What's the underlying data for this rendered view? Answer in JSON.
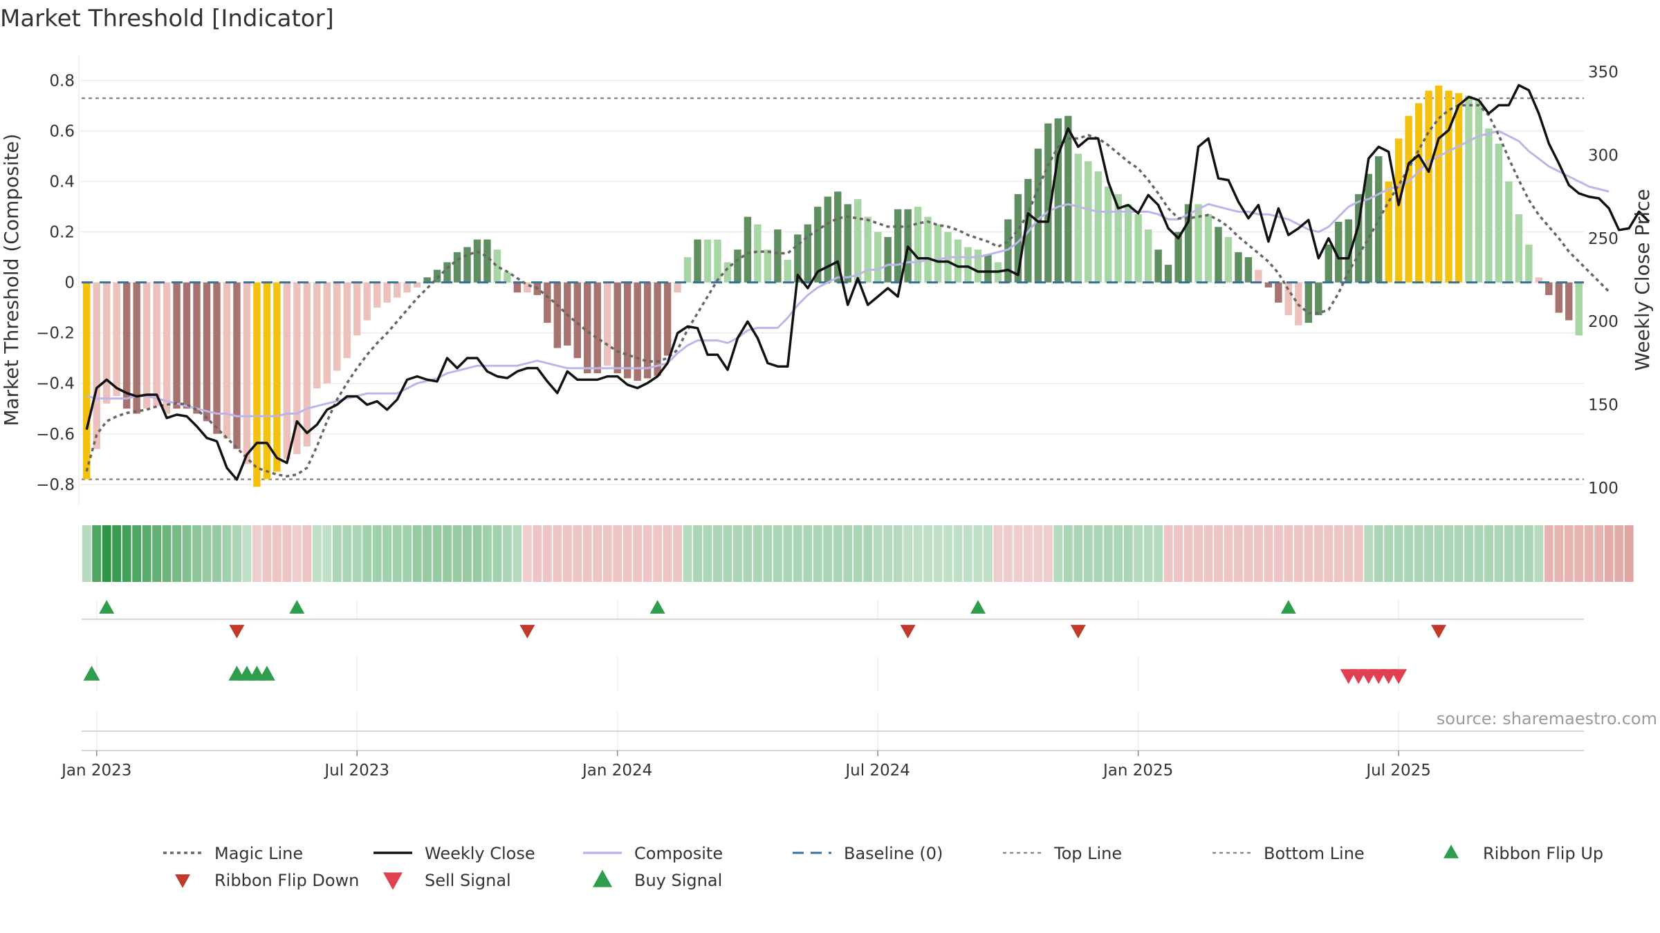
{
  "colors": {
    "bar_pos_strong": "#5f8f61",
    "bar_pos_weak": "#a8d5a4",
    "bar_neg_strong": "#a6736f",
    "bar_neg_weak": "#ecc0bb",
    "bar_extreme": "#f5c10f",
    "magic_line": "#666666",
    "weekly_close": "#111111",
    "composite": "#bdb5e8",
    "baseline": "#3a6f96",
    "threshold": "#888888",
    "buy": "#2e9e4d",
    "sell": "#d63b3b",
    "grid": "#ececec"
  },
  "chart_data": {
    "type": "bar",
    "title": "Market Threshold [Indicator]",
    "ylabel": "Market Threshold (Composite)",
    "y2label": "Weekly Close Price",
    "ylim": [
      -0.88,
      0.9
    ],
    "y2lim": [
      90,
      360
    ],
    "yticks": [
      -0.8,
      -0.6,
      -0.4,
      -0.2,
      0,
      0.2,
      0.4,
      0.6,
      0.8
    ],
    "ytick_labels": [
      "−0.8",
      "−0.6",
      "−0.4",
      "−0.2",
      "0",
      "0.2",
      "0.4",
      "0.6",
      "0.8"
    ],
    "y2ticks": [
      100,
      150,
      200,
      250,
      300,
      350
    ],
    "xticks": [
      {
        "week": 1,
        "label": "Jan 2023"
      },
      {
        "week": 27,
        "label": "Jul 2023"
      },
      {
        "week": 53,
        "label": "Jan 2024"
      },
      {
        "week": 79,
        "label": "Jul 2024"
      },
      {
        "week": 105,
        "label": "Jan 2025"
      },
      {
        "week": 131,
        "label": "Jul 2025"
      }
    ],
    "top_line": 0.73,
    "bottom_line": -0.78,
    "grid": true,
    "source": "source: sharemaestro.com",
    "bars": [
      -0.78,
      -0.66,
      -0.48,
      -0.45,
      -0.5,
      -0.52,
      -0.5,
      -0.49,
      -0.52,
      -0.5,
      -0.5,
      -0.52,
      -0.55,
      -0.6,
      -0.62,
      -0.66,
      -0.72,
      -0.81,
      -0.78,
      -0.75,
      -0.7,
      -0.68,
      -0.65,
      -0.42,
      -0.4,
      -0.35,
      -0.3,
      -0.21,
      -0.15,
      -0.1,
      -0.08,
      -0.06,
      -0.04,
      -0.02,
      0.02,
      0.05,
      0.08,
      0.12,
      0.14,
      0.17,
      0.17,
      0.13,
      0.04,
      -0.04,
      -0.04,
      -0.05,
      -0.16,
      -0.26,
      -0.25,
      -0.3,
      -0.36,
      -0.36,
      -0.33,
      -0.36,
      -0.38,
      -0.39,
      -0.38,
      -0.37,
      -0.29,
      -0.04,
      0.1,
      0.17,
      0.17,
      0.17,
      0.08,
      0.13,
      0.26,
      0.23,
      0.13,
      0.21,
      0.09,
      0.19,
      0.23,
      0.3,
      0.34,
      0.36,
      0.31,
      0.33,
      0.26,
      0.2,
      0.18,
      0.29,
      0.29,
      0.3,
      0.26,
      0.23,
      0.2,
      0.17,
      0.14,
      0.13,
      0.11,
      0.08,
      0.25,
      0.35,
      0.41,
      0.53,
      0.63,
      0.65,
      0.66,
      0.51,
      0.48,
      0.44,
      0.38,
      0.35,
      0.31,
      0.27,
      0.21,
      0.13,
      0.07,
      0.2,
      0.31,
      0.31,
      0.27,
      0.22,
      0.18,
      0.12,
      0.1,
      0.05,
      -0.02,
      -0.08,
      -0.13,
      -0.17,
      -0.16,
      -0.13,
      0.15,
      0.24,
      0.25,
      0.35,
      0.43,
      0.5,
      0.4,
      0.57,
      0.66,
      0.71,
      0.76,
      0.78,
      0.76,
      0.75,
      0.74,
      0.72,
      0.61,
      0.55,
      0.4,
      0.27,
      0.15,
      0.02,
      -0.05,
      -0.12,
      -0.15,
      -0.21
    ],
    "bar_classes": [
      "x",
      "nw",
      "nw",
      "nw",
      "ns",
      "ns",
      "nw",
      "nw",
      "nw",
      "ns",
      "ns",
      "ns",
      "ns",
      "ns",
      "nw",
      "ns",
      "nw",
      "x",
      "x",
      "x",
      "nw",
      "nw",
      "nw",
      "nw",
      "nw",
      "nw",
      "nw",
      "nw",
      "nw",
      "nw",
      "nw",
      "nw",
      "nw",
      "nw",
      "ps",
      "ps",
      "ps",
      "ps",
      "ps",
      "ps",
      "ps",
      "pw",
      "pw",
      "ns",
      "nw",
      "ns",
      "ns",
      "ns",
      "ns",
      "ns",
      "ns",
      "ns",
      "nw",
      "ns",
      "ns",
      "ns",
      "ns",
      "ns",
      "ns",
      "nw",
      "pw",
      "ps",
      "pw",
      "pw",
      "pw",
      "ps",
      "ps",
      "pw",
      "pw",
      "ps",
      "pw",
      "ps",
      "ps",
      "ps",
      "ps",
      "ps",
      "ps",
      "pw",
      "pw",
      "pw",
      "ps",
      "ps",
      "ps",
      "pw",
      "pw",
      "pw",
      "pw",
      "pw",
      "pw",
      "pw",
      "ps",
      "pw",
      "ps",
      "ps",
      "ps",
      "ps",
      "ps",
      "ps",
      "ps",
      "pw",
      "pw",
      "pw",
      "pw",
      "pw",
      "pw",
      "pw",
      "pw",
      "ps",
      "ps",
      "ps",
      "ps",
      "pw",
      "pw",
      "ps",
      "pw",
      "ps",
      "ps",
      "nw",
      "ns",
      "ns",
      "nw",
      "nw",
      "ps",
      "ps",
      "ps",
      "ps",
      "ps",
      "ps",
      "ps",
      "ps",
      "x",
      "x",
      "x",
      "x",
      "x",
      "x",
      "x",
      "x",
      "pw",
      "pw",
      "pw",
      "pw",
      "pw",
      "pw",
      "pw",
      "nw",
      "ns",
      "ns",
      "ns"
    ],
    "weekly_close": [
      135,
      160,
      165,
      160,
      157,
      155,
      156,
      156,
      142,
      144,
      143,
      137,
      130,
      128,
      112,
      105,
      120,
      127,
      127,
      118,
      115,
      140,
      133,
      138,
      147,
      150,
      155,
      155,
      150,
      152,
      147,
      153,
      165,
      167,
      165,
      164,
      178,
      172,
      178,
      178,
      170,
      167,
      166,
      170,
      172,
      172,
      164,
      157,
      170,
      165,
      165,
      165,
      167,
      167,
      162,
      160,
      163,
      167,
      175,
      193,
      197,
      196,
      180,
      180,
      171,
      190,
      200,
      190,
      175,
      173,
      173,
      228,
      220,
      230,
      233,
      236,
      210,
      226,
      210,
      215,
      220,
      215,
      245,
      238,
      238,
      236,
      236,
      233,
      233,
      230,
      230,
      230,
      231,
      228,
      265,
      260,
      260,
      300,
      316,
      305,
      310,
      310,
      284,
      268,
      270,
      265,
      276,
      270,
      256,
      250,
      260,
      305,
      310,
      286,
      285,
      272,
      262,
      270,
      248,
      268,
      252,
      256,
      261,
      238,
      250,
      238,
      238,
      258,
      298,
      305,
      302,
      270,
      295,
      300,
      290,
      310,
      315,
      330,
      335,
      333,
      325,
      330,
      330,
      342,
      339,
      325,
      307,
      295,
      282,
      277,
      275,
      274,
      268,
      255,
      256,
      266,
      260
    ],
    "magic_line": [
      110,
      132,
      140,
      143,
      145,
      146,
      147,
      149,
      150,
      151,
      150,
      147,
      142,
      136,
      130,
      124,
      118,
      112,
      110,
      108,
      107,
      108,
      112,
      125,
      140,
      153,
      163,
      172,
      180,
      187,
      193,
      200,
      207,
      214,
      220,
      226,
      232,
      237,
      240,
      242,
      239,
      233,
      230,
      226,
      222,
      220,
      215,
      210,
      204,
      199,
      194,
      190,
      186,
      182,
      180,
      178,
      176,
      176,
      178,
      183,
      195,
      205,
      215,
      225,
      232,
      237,
      241,
      242,
      242,
      241,
      241,
      246,
      251,
      255,
      259,
      262,
      263,
      262,
      261,
      259,
      257,
      257,
      257,
      259,
      260,
      258,
      257,
      255,
      252,
      250,
      248,
      245,
      248,
      255,
      265,
      280,
      294,
      305,
      310,
      310,
      312,
      310,
      306,
      301,
      296,
      292,
      285,
      277,
      268,
      262,
      262,
      263,
      264,
      261,
      257,
      251,
      246,
      241,
      236,
      229,
      219,
      210,
      205,
      205,
      207,
      217,
      230,
      240,
      250,
      261,
      272,
      282,
      292,
      303,
      314,
      322,
      327,
      330,
      330,
      330,
      324,
      312,
      298,
      285,
      273,
      264,
      257,
      250,
      242,
      236,
      230,
      224,
      218
    ],
    "composite_line": [
      -0.45,
      -0.46,
      -0.46,
      -0.46,
      -0.46,
      -0.45,
      -0.45,
      -0.46,
      -0.47,
      -0.48,
      -0.49,
      -0.5,
      -0.51,
      -0.52,
      -0.52,
      -0.53,
      -0.53,
      -0.53,
      -0.53,
      -0.53,
      -0.52,
      -0.52,
      -0.5,
      -0.49,
      -0.48,
      -0.47,
      -0.46,
      -0.45,
      -0.44,
      -0.44,
      -0.44,
      -0.44,
      -0.42,
      -0.4,
      -0.39,
      -0.38,
      -0.36,
      -0.35,
      -0.34,
      -0.33,
      -0.33,
      -0.33,
      -0.33,
      -0.33,
      -0.32,
      -0.31,
      -0.32,
      -0.33,
      -0.34,
      -0.34,
      -0.34,
      -0.34,
      -0.34,
      -0.34,
      -0.34,
      -0.34,
      -0.34,
      -0.33,
      -0.32,
      -0.28,
      -0.25,
      -0.23,
      -0.23,
      -0.23,
      -0.24,
      -0.22,
      -0.19,
      -0.18,
      -0.18,
      -0.18,
      -0.14,
      -0.09,
      -0.05,
      -0.02,
      0.0,
      0.02,
      0.02,
      0.03,
      0.05,
      0.05,
      0.07,
      0.07,
      0.08,
      0.08,
      0.09,
      0.09,
      0.1,
      0.1,
      0.1,
      0.1,
      0.11,
      0.12,
      0.13,
      0.16,
      0.2,
      0.25,
      0.28,
      0.3,
      0.31,
      0.3,
      0.29,
      0.28,
      0.28,
      0.28,
      0.28,
      0.28,
      0.28,
      0.27,
      0.25,
      0.25,
      0.27,
      0.29,
      0.31,
      0.3,
      0.29,
      0.28,
      0.28,
      0.27,
      0.27,
      0.26,
      0.25,
      0.23,
      0.21,
      0.2,
      0.22,
      0.26,
      0.3,
      0.32,
      0.33,
      0.35,
      0.37,
      0.38,
      0.4,
      0.44,
      0.48,
      0.5,
      0.52,
      0.54,
      0.56,
      0.58,
      0.59,
      0.6,
      0.58,
      0.56,
      0.52,
      0.49,
      0.46,
      0.44,
      0.42,
      0.4,
      0.38,
      0.37,
      0.36
    ],
    "ribbon": [
      0.35,
      0.85,
      1,
      0.95,
      0.9,
      0.85,
      0.8,
      0.75,
      0.7,
      0.65,
      0.6,
      0.55,
      0.5,
      0.5,
      0.45,
      0.4,
      0.3,
      -0.3,
      -0.35,
      -0.35,
      -0.35,
      -0.3,
      -0.35,
      0.3,
      0.3,
      0.4,
      0.4,
      0.4,
      0.45,
      0.45,
      0.45,
      0.45,
      0.45,
      0.5,
      0.5,
      0.5,
      0.5,
      0.5,
      0.5,
      0.5,
      0.45,
      0.45,
      0.4,
      0.35,
      -0.3,
      -0.35,
      -0.35,
      -0.35,
      -0.35,
      -0.35,
      -0.35,
      -0.35,
      -0.35,
      -0.35,
      -0.35,
      -0.35,
      -0.35,
      -0.35,
      -0.35,
      -0.35,
      0.35,
      0.4,
      0.4,
      0.4,
      0.4,
      0.4,
      0.4,
      0.4,
      0.4,
      0.4,
      0.4,
      0.4,
      0.4,
      0.4,
      0.4,
      0.4,
      0.4,
      0.4,
      0.4,
      0.35,
      0.35,
      0.35,
      0.3,
      0.3,
      0.3,
      0.3,
      0.3,
      0.3,
      0.3,
      0.3,
      0.3,
      -0.3,
      -0.3,
      -0.3,
      -0.3,
      -0.3,
      -0.3,
      0.35,
      0.4,
      0.4,
      0.4,
      0.4,
      0.4,
      0.4,
      0.4,
      0.35,
      0.35,
      0.35,
      -0.35,
      -0.35,
      -0.35,
      -0.35,
      -0.35,
      -0.35,
      -0.35,
      -0.35,
      -0.35,
      -0.35,
      -0.35,
      -0.35,
      -0.35,
      -0.35,
      -0.35,
      -0.35,
      -0.35,
      -0.35,
      -0.35,
      -0.35,
      0.35,
      0.4,
      0.4,
      0.4,
      0.4,
      0.4,
      0.4,
      0.4,
      0.4,
      0.4,
      0.4,
      0.4,
      0.4,
      0.4,
      0.4,
      0.4,
      0.4,
      0.35,
      -0.45,
      -0.45,
      -0.45,
      -0.45,
      -0.45,
      -0.45,
      -0.5,
      -0.5,
      -0.55
    ],
    "ribbon_flip_up_weeks": [
      2,
      21,
      57,
      89,
      120
    ],
    "ribbon_flip_down_weeks": [
      15,
      44,
      82,
      99,
      135
    ],
    "buy_signal_weeks": [
      0.5,
      15,
      16,
      17,
      18
    ],
    "sell_signal_weeks": [
      126,
      127,
      128,
      129,
      130,
      131
    ],
    "legend": [
      {
        "label": "Magic Line",
        "kind": "dotted",
        "color": "#666666"
      },
      {
        "label": "Weekly Close",
        "kind": "solid",
        "color": "#111111"
      },
      {
        "label": "Composite",
        "kind": "solid-light",
        "color": "#bdb5e8"
      },
      {
        "label": "Baseline (0)",
        "kind": "dashed",
        "color": "#3a6f96"
      },
      {
        "label": "Top Line",
        "kind": "dotted-thin",
        "color": "#888888"
      },
      {
        "label": "Bottom Line",
        "kind": "dotted-thin",
        "color": "#888888"
      },
      {
        "label": "Ribbon Flip Up",
        "kind": "tri-up-small",
        "color": "#2e9e4d"
      },
      {
        "label": "Ribbon Flip Down",
        "kind": "tri-down-small",
        "color": "#c0392b"
      },
      {
        "label": "Sell Signal",
        "kind": "tri-down",
        "color": "#e04050"
      },
      {
        "label": "Buy Signal",
        "kind": "tri-up",
        "color": "#2e9e4d"
      }
    ]
  }
}
